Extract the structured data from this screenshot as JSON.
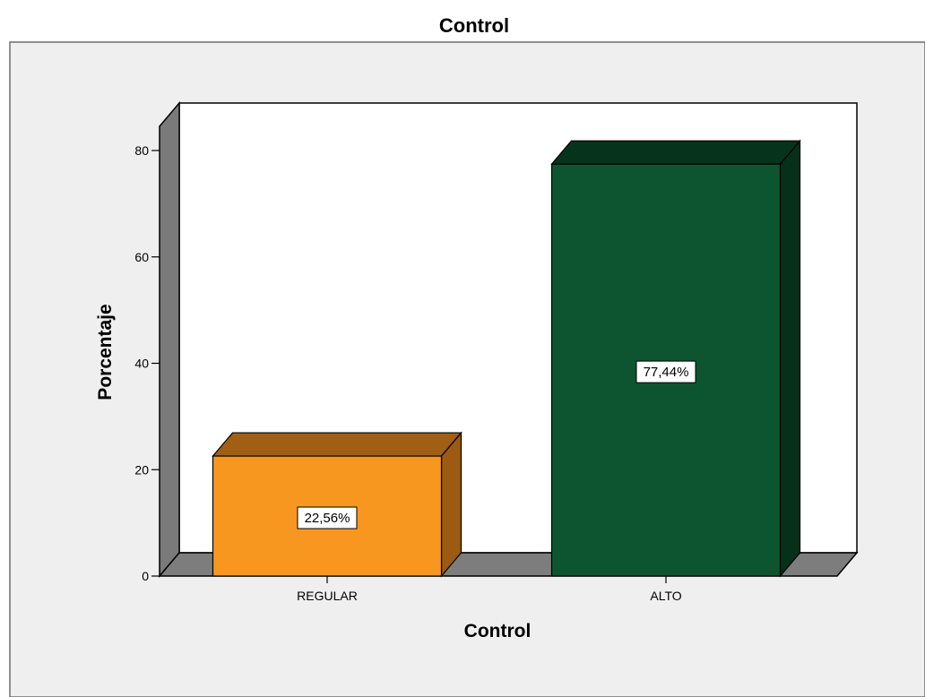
{
  "chart_data": {
    "type": "bar",
    "title": "Control",
    "xlabel": "Control",
    "ylabel": "Porcentaje",
    "categories": [
      "REGULAR",
      "ALTO"
    ],
    "values": [
      22.56,
      77.44
    ],
    "data_labels": [
      "22,56%",
      "77,44%"
    ],
    "ylim": [
      0,
      85
    ],
    "yticks": [
      0,
      20,
      40,
      60,
      80
    ],
    "ytick_labels": [
      "0",
      "20",
      "40",
      "60",
      "80"
    ],
    "grid": false,
    "legend": "none",
    "style": "3d",
    "colors": {
      "outer_background": "#efefef",
      "plot_back_wall": "#ffffff",
      "side_wall": "#7a7a7a",
      "floor": "#7d7d7d",
      "bars": [
        {
          "front": "#f7971f",
          "top": "#a05f15",
          "side": "#9c5a12"
        },
        {
          "front": "#0c5530",
          "top": "#06331c",
          "side": "#063019"
        }
      ]
    }
  }
}
